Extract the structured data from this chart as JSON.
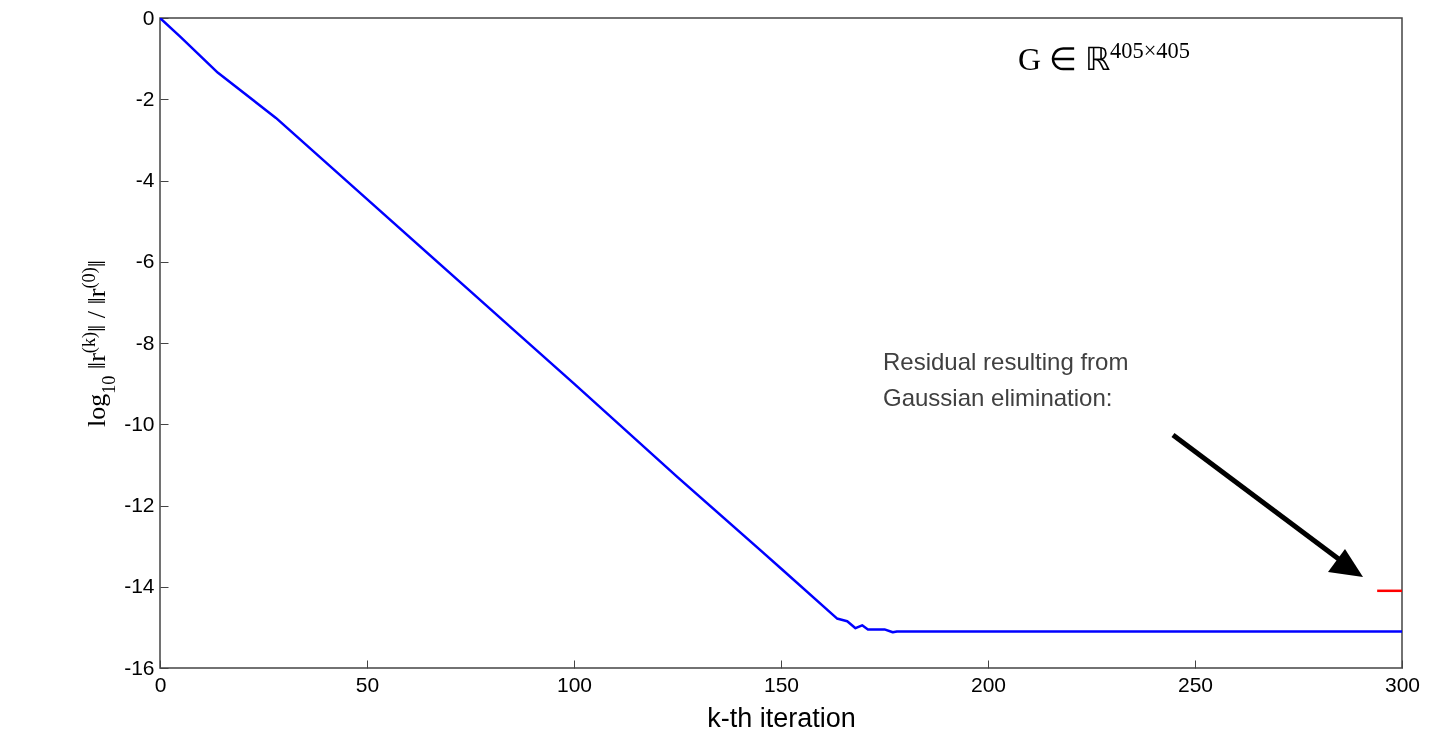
{
  "chart_data": {
    "type": "line",
    "xlabel": "k-th iteration",
    "ylabel": "log$_{10}$ ‖r$^{(k)}$‖ / ‖r$^{(0)}$‖",
    "annotations": [
      "G ∈ ℝ$^{405×405}$",
      "Residual resulting from\nGaussian elimination:"
    ],
    "xlim": [
      0,
      300
    ],
    "xticks": [
      0,
      50,
      100,
      150,
      200,
      250,
      300
    ],
    "ylim": [
      -16,
      0
    ],
    "yticks": [
      -16,
      -14,
      -12,
      -10,
      -8,
      -6,
      -4,
      -2,
      0
    ],
    "grid": false,
    "series": [
      {
        "color": "#0000ff",
        "x": [
          0,
          5,
          14,
          28,
          50,
          75,
          100,
          125,
          150,
          163.5,
          166,
          168,
          169.6,
          171,
          175,
          177,
          178,
          300
        ],
        "values": [
          0,
          -0.47,
          -1.35,
          -2.46,
          -4.46,
          -6.73,
          -9.0,
          -11.3,
          -13.55,
          -14.78,
          -14.85,
          -15.02,
          -14.95,
          -15.05,
          -15.05,
          -15.12,
          -15.1,
          -15.1
        ]
      },
      {
        "color": "#ff0000",
        "x": [
          294,
          300
        ],
        "values": [
          -14.1,
          -14.1
        ]
      }
    ]
  }
}
